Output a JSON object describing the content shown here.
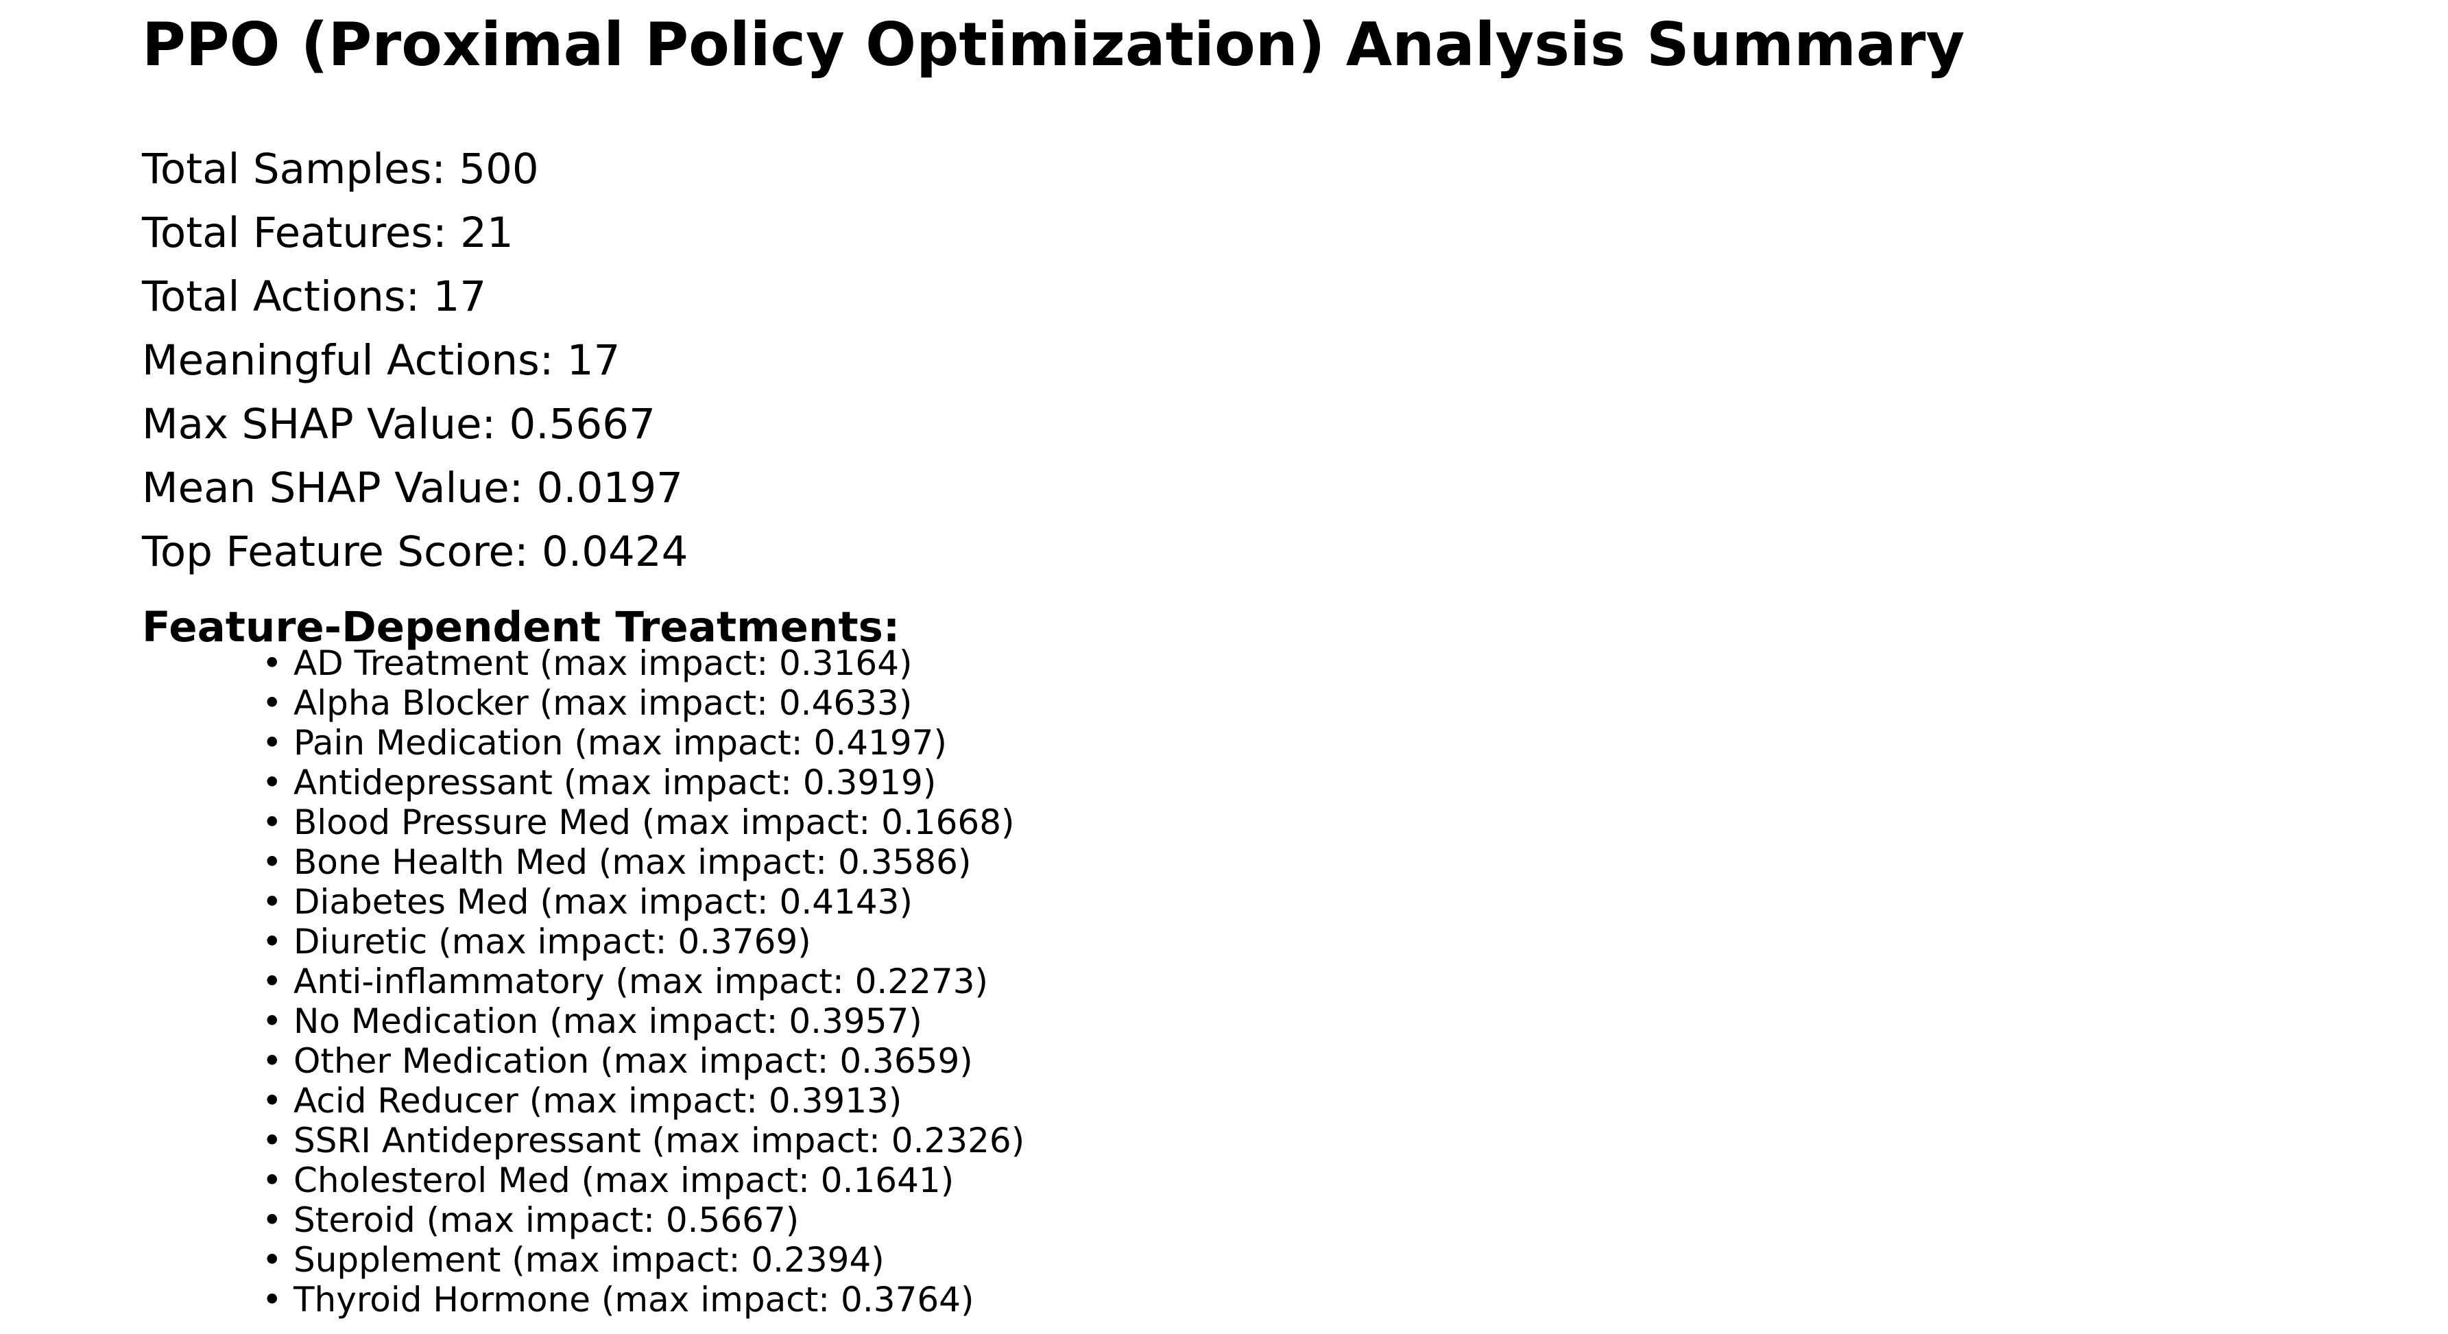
{
  "title": "PPO (Proximal Policy Optimization) Analysis Summary",
  "stats": [
    "Total Samples: 500",
    "Total Features: 21",
    "Total Actions: 17",
    "Meaningful Actions: 17",
    "Max SHAP Value: 0.5667",
    "Mean SHAP Value: 0.0197",
    "Top Feature Score: 0.0424"
  ],
  "treatments_heading": "Feature-Dependent Treatments:",
  "bullet": "•",
  "treatments": [
    "AD Treatment (max impact: 0.3164)",
    "Alpha Blocker (max impact: 0.4633)",
    "Pain Medication (max impact: 0.4197)",
    "Antidepressant (max impact: 0.3919)",
    "Blood Pressure Med (max impact: 0.1668)",
    "Bone Health Med (max impact: 0.3586)",
    "Diabetes Med (max impact: 0.4143)",
    "Diuretic (max impact: 0.3769)",
    "Anti-inflammatory (max impact: 0.2273)",
    "No Medication (max impact: 0.3957)",
    "Other Medication (max impact: 0.3659)",
    "Acid Reducer (max impact: 0.3913)",
    "SSRI Antidepressant (max impact: 0.2326)",
    "Cholesterol Med (max impact: 0.1641)",
    "Steroid (max impact: 0.5667)",
    "Supplement (max impact: 0.2394)",
    "Thyroid Hormone (max impact: 0.3764)"
  ]
}
